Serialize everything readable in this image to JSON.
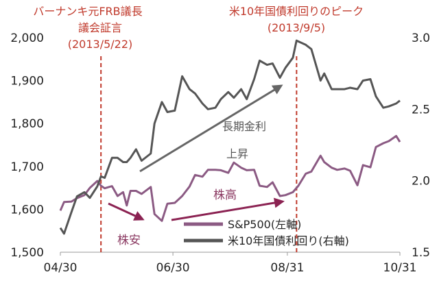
{
  "chart_data": {
    "type": "line",
    "x_ticks": [
      "04/30",
      "06/30",
      "08/31",
      "10/31"
    ],
    "y_left": {
      "ticks": [
        "1,500",
        "1,600",
        "1,700",
        "1,800",
        "1,900",
        "2,000"
      ],
      "range": [
        1500,
        2000
      ]
    },
    "y_right": {
      "ticks": [
        "1.5",
        "2.0",
        "2.5",
        "3.0"
      ],
      "range": [
        1.5,
        3.0
      ]
    },
    "x_range": [
      "2013-04-30",
      "2013-10-31"
    ],
    "series": [
      {
        "name": "S&P500(左軸)",
        "axis": "left",
        "color": "#8b5a83",
        "x": [
          "2013-04-30",
          "2013-05-02",
          "2013-05-06",
          "2013-05-09",
          "2013-05-13",
          "2013-05-16",
          "2013-05-20",
          "2013-05-22",
          "2013-05-24",
          "2013-05-28",
          "2013-05-31",
          "2013-06-03",
          "2013-06-05",
          "2013-06-07",
          "2013-06-10",
          "2013-06-13",
          "2013-06-18",
          "2013-06-20",
          "2013-06-24",
          "2013-06-27",
          "2013-07-01",
          "2013-07-05",
          "2013-07-09",
          "2013-07-12",
          "2013-07-16",
          "2013-07-19",
          "2013-07-23",
          "2013-07-26",
          "2013-07-30",
          "2013-08-02",
          "2013-08-06",
          "2013-08-09",
          "2013-08-13",
          "2013-08-16",
          "2013-08-20",
          "2013-08-23",
          "2013-08-27",
          "2013-08-30",
          "2013-09-03",
          "2013-09-06",
          "2013-09-10",
          "2013-09-13",
          "2013-09-18",
          "2013-09-20",
          "2013-09-24",
          "2013-09-27",
          "2013-10-01",
          "2013-10-04",
          "2013-10-08",
          "2013-10-11",
          "2013-10-15",
          "2013-10-18",
          "2013-10-22",
          "2013-10-25",
          "2013-10-29",
          "2013-10-31"
        ],
        "values": [
          1597,
          1617,
          1618,
          1626,
          1633,
          1650,
          1666,
          1655,
          1649,
          1654,
          1631,
          1640,
          1609,
          1643,
          1643,
          1636,
          1652,
          1589,
          1573,
          1613,
          1615,
          1631,
          1653,
          1680,
          1676,
          1692,
          1692,
          1691,
          1685,
          1709,
          1697,
          1691,
          1692,
          1655,
          1652,
          1663,
          1631,
          1633,
          1640,
          1655,
          1683,
          1688,
          1725,
          1710,
          1697,
          1692,
          1695,
          1690,
          1656,
          1703,
          1698,
          1745,
          1754,
          1759,
          1771,
          1757
        ]
      },
      {
        "name": "米10年国債利回り(右軸)",
        "axis": "right",
        "color": "#555555",
        "x": [
          "2013-04-30",
          "2013-05-02",
          "2013-05-06",
          "2013-05-09",
          "2013-05-13",
          "2013-05-16",
          "2013-05-20",
          "2013-05-22",
          "2013-05-24",
          "2013-05-28",
          "2013-05-31",
          "2013-06-03",
          "2013-06-05",
          "2013-06-07",
          "2013-06-10",
          "2013-06-13",
          "2013-06-18",
          "2013-06-20",
          "2013-06-24",
          "2013-06-27",
          "2013-07-01",
          "2013-07-05",
          "2013-07-09",
          "2013-07-12",
          "2013-07-16",
          "2013-07-19",
          "2013-07-23",
          "2013-07-26",
          "2013-07-30",
          "2013-08-02",
          "2013-08-06",
          "2013-08-09",
          "2013-08-13",
          "2013-08-16",
          "2013-08-20",
          "2013-08-23",
          "2013-08-27",
          "2013-08-30",
          "2013-09-03",
          "2013-09-05",
          "2013-09-10",
          "2013-09-13",
          "2013-09-18",
          "2013-09-20",
          "2013-09-24",
          "2013-09-27",
          "2013-10-01",
          "2013-10-04",
          "2013-10-08",
          "2013-10-11",
          "2013-10-15",
          "2013-10-18",
          "2013-10-22",
          "2013-10-25",
          "2013-10-29",
          "2013-10-31"
        ],
        "values": [
          1.67,
          1.63,
          1.78,
          1.89,
          1.92,
          1.88,
          1.96,
          2.03,
          2.02,
          2.16,
          2.16,
          2.13,
          2.13,
          2.16,
          2.22,
          2.14,
          2.19,
          2.4,
          2.55,
          2.48,
          2.49,
          2.73,
          2.64,
          2.61,
          2.54,
          2.5,
          2.51,
          2.57,
          2.62,
          2.58,
          2.64,
          2.57,
          2.71,
          2.84,
          2.81,
          2.82,
          2.72,
          2.79,
          2.86,
          2.98,
          2.95,
          2.92,
          2.7,
          2.75,
          2.64,
          2.64,
          2.64,
          2.65,
          2.64,
          2.7,
          2.71,
          2.59,
          2.51,
          2.52,
          2.54,
          2.56
        ]
      }
    ],
    "annotations": {
      "bernanke_title_1": "バーナンキ元FRB議長",
      "bernanke_title_2": "議会証言",
      "bernanke_date": "(2013/5/22)",
      "bernanke_x": "2013-05-22",
      "peak_title": "米10年国債利回りのピーク",
      "peak_date": "(2013/9/5)",
      "peak_x": "2013-09-05",
      "rate_rise_1": "長期金利",
      "rate_rise_2": "上昇",
      "stock_down": "株安",
      "stock_up": "株高"
    },
    "grid": false,
    "legend_position": "bottom-right"
  }
}
